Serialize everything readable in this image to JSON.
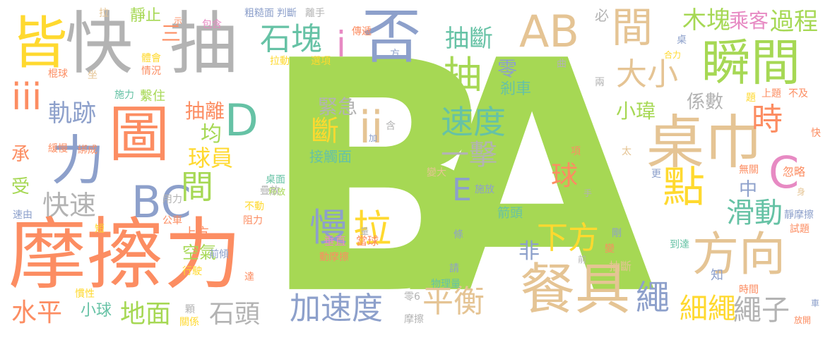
{
  "colors": {
    "green": "#a6d854",
    "gray": "#b3b3b3",
    "tan": "#e5c494",
    "orange": "#fc8d62",
    "blue": "#8da0cb",
    "pink": "#e78ac3",
    "teal": "#66c2a5",
    "yellow": "#ffd92f"
  },
  "words": [
    {
      "text": "B",
      "color": "green"
    },
    {
      "text": "A",
      "color": "green"
    },
    {
      "text": "摩擦力",
      "color": "orange"
    },
    {
      "text": "快",
      "color": "gray"
    },
    {
      "text": "抽",
      "color": "gray"
    },
    {
      "text": "皆",
      "color": "yellow"
    },
    {
      "text": "否",
      "color": "blue"
    },
    {
      "text": "圖",
      "color": "orange"
    },
    {
      "text": "力",
      "color": "blue"
    },
    {
      "text": "AB",
      "color": "tan"
    },
    {
      "text": "桌巾",
      "color": "tan"
    },
    {
      "text": "瞬間",
      "color": "green"
    },
    {
      "text": "間",
      "color": "tan"
    },
    {
      "text": "餐具",
      "color": "tan"
    },
    {
      "text": "方向",
      "color": "tan"
    },
    {
      "text": "點",
      "color": "yellow"
    },
    {
      "text": "BC",
      "color": "blue"
    },
    {
      "text": "D",
      "color": "teal"
    },
    {
      "text": "C",
      "color": "pink"
    },
    {
      "text": "ii",
      "color": "tan"
    },
    {
      "text": "拉",
      "color": "yellow"
    },
    {
      "text": "慢",
      "color": "blue"
    },
    {
      "text": "速度",
      "color": "teal"
    },
    {
      "text": "抽",
      "color": "green"
    },
    {
      "text": "石塊",
      "color": "teal"
    },
    {
      "text": "i",
      "color": "pink"
    },
    {
      "text": "iii",
      "color": "orange"
    },
    {
      "text": "加速度",
      "color": "blue"
    },
    {
      "text": "平衡",
      "color": "tan"
    },
    {
      "text": "下方",
      "color": "yellow"
    },
    {
      "text": "細繩",
      "color": "yellow"
    },
    {
      "text": "繩子",
      "color": "gray"
    },
    {
      "text": "繩",
      "color": "blue"
    },
    {
      "text": "大小",
      "color": "tan"
    },
    {
      "text": "時",
      "color": "orange"
    },
    {
      "text": "滑動",
      "color": "teal"
    },
    {
      "text": "一擊",
      "color": "gray"
    },
    {
      "text": "水平",
      "color": "orange"
    },
    {
      "text": "地面",
      "color": "green"
    },
    {
      "text": "石頭",
      "color": "gray"
    },
    {
      "text": "快速",
      "color": "gray"
    },
    {
      "text": "間",
      "color": "green"
    },
    {
      "text": "軌跡",
      "color": "blue"
    },
    {
      "text": "抽斷",
      "color": "teal"
    },
    {
      "text": "木塊",
      "color": "green"
    },
    {
      "text": "過程",
      "color": "green"
    },
    {
      "text": "乘客",
      "color": "pink"
    },
    {
      "text": "斷",
      "color": "yellow"
    },
    {
      "text": "球",
      "color": "orange"
    },
    {
      "text": "E",
      "color": "blue"
    },
    {
      "text": "非",
      "color": "blue"
    },
    {
      "text": "球員",
      "color": "yellow"
    },
    {
      "text": "緊急",
      "color": "gray"
    },
    {
      "text": "抽離",
      "color": "orange"
    },
    {
      "text": "係數",
      "color": "gray"
    },
    {
      "text": "小瑋",
      "color": "green"
    },
    {
      "text": "零",
      "color": "blue"
    },
    {
      "text": "均",
      "color": "green"
    },
    {
      "text": "承",
      "color": "orange"
    },
    {
      "text": "受",
      "color": "green"
    },
    {
      "text": "三",
      "color": "orange"
    },
    {
      "text": "中",
      "color": "blue"
    },
    {
      "text": "剎車",
      "color": "teal"
    },
    {
      "text": "接觸面",
      "color": "teal"
    },
    {
      "text": "垂直",
      "color": "pink"
    },
    {
      "text": "當球",
      "color": "orange"
    },
    {
      "text": "空氣",
      "color": "green"
    },
    {
      "text": "上方",
      "color": "orange"
    },
    {
      "text": "小球",
      "color": "teal"
    },
    {
      "text": "靜止",
      "color": "green"
    },
    {
      "text": "繫住",
      "color": "green"
    },
    {
      "text": "箭頭",
      "color": "teal"
    },
    {
      "text": "必",
      "color": "gray"
    },
    {
      "text": "抽斷",
      "color": "tan"
    },
    {
      "text": "傳遞",
      "color": "orange"
    },
    {
      "text": "粗糙面",
      "color": "blue"
    },
    {
      "text": "判斷",
      "color": "blue"
    },
    {
      "text": "離手",
      "color": "gray"
    },
    {
      "text": "包含",
      "color": "pink"
    },
    {
      "text": "示",
      "color": "orange"
    },
    {
      "text": "拉",
      "color": "tan"
    },
    {
      "text": "體會",
      "color": "yellow"
    },
    {
      "text": "情況",
      "color": "orange"
    },
    {
      "text": "棍球",
      "color": "orange"
    },
    {
      "text": "坐",
      "color": "tan"
    },
    {
      "text": "施力",
      "color": "teal"
    },
    {
      "text": "緩慢",
      "color": "orange"
    },
    {
      "text": "綁成",
      "color": "orange"
    },
    {
      "text": "拉動",
      "color": "yellow"
    },
    {
      "text": "選項",
      "color": "yellow"
    },
    {
      "text": "方",
      "color": "blue"
    },
    {
      "text": "曲",
      "color": "gray"
    },
    {
      "text": "兩",
      "color": "gray"
    },
    {
      "text": "桌",
      "color": "blue"
    },
    {
      "text": "合力",
      "color": "yellow"
    },
    {
      "text": "題",
      "color": "yellow"
    },
    {
      "text": "上題",
      "color": "orange"
    },
    {
      "text": "不及",
      "color": "orange"
    },
    {
      "text": "快",
      "color": "orange"
    },
    {
      "text": "太",
      "color": "tan"
    },
    {
      "text": "更",
      "color": "blue"
    },
    {
      "text": "無關",
      "color": "orange"
    },
    {
      "text": "忽略",
      "color": "orange"
    },
    {
      "text": "身",
      "color": "tan"
    },
    {
      "text": "手",
      "color": "gray"
    },
    {
      "text": "靜摩擦",
      "color": "blue"
    },
    {
      "text": "試題",
      "color": "orange"
    },
    {
      "text": "項",
      "color": "orange"
    },
    {
      "text": "變大",
      "color": "tan"
    },
    {
      "text": "施放",
      "color": "blue"
    },
    {
      "text": "剛",
      "color": "blue"
    },
    {
      "text": "變",
      "color": "orange"
    },
    {
      "text": "前",
      "color": "gray"
    },
    {
      "text": "到達",
      "color": "teal"
    },
    {
      "text": "知",
      "color": "blue"
    },
    {
      "text": "時間",
      "color": "orange"
    },
    {
      "text": "車",
      "color": "blue"
    },
    {
      "text": "放開",
      "color": "orange"
    },
    {
      "text": "桌面",
      "color": "teal"
    },
    {
      "text": "釋放",
      "color": "green"
    },
    {
      "text": "疊放",
      "color": "gray"
    },
    {
      "text": "不動",
      "color": "yellow"
    },
    {
      "text": "阻力",
      "color": "orange"
    },
    {
      "text": "用力",
      "color": "gray"
    },
    {
      "text": "公車",
      "color": "orange"
    },
    {
      "text": "速由",
      "color": "blue"
    },
    {
      "text": "短",
      "color": "yellow"
    },
    {
      "text": "前傾",
      "color": "blue"
    },
    {
      "text": "行駛",
      "color": "yellow"
    },
    {
      "text": "達",
      "color": "orange"
    },
    {
      "text": "慣性",
      "color": "yellow"
    },
    {
      "text": "顆",
      "color": "gray"
    },
    {
      "text": "關係",
      "color": "yellow"
    },
    {
      "text": "量",
      "color": "gray"
    },
    {
      "text": "條",
      "color": "blue"
    },
    {
      "text": "動摩擦",
      "color": "orange"
    },
    {
      "text": "請",
      "color": "blue"
    },
    {
      "text": "物理量",
      "color": "teal"
    },
    {
      "text": "零6",
      "color": "gray"
    },
    {
      "text": "摩擦",
      "color": "gray"
    },
    {
      "text": "含",
      "color": "gray"
    },
    {
      "text": "加",
      "color": "blue"
    }
  ]
}
